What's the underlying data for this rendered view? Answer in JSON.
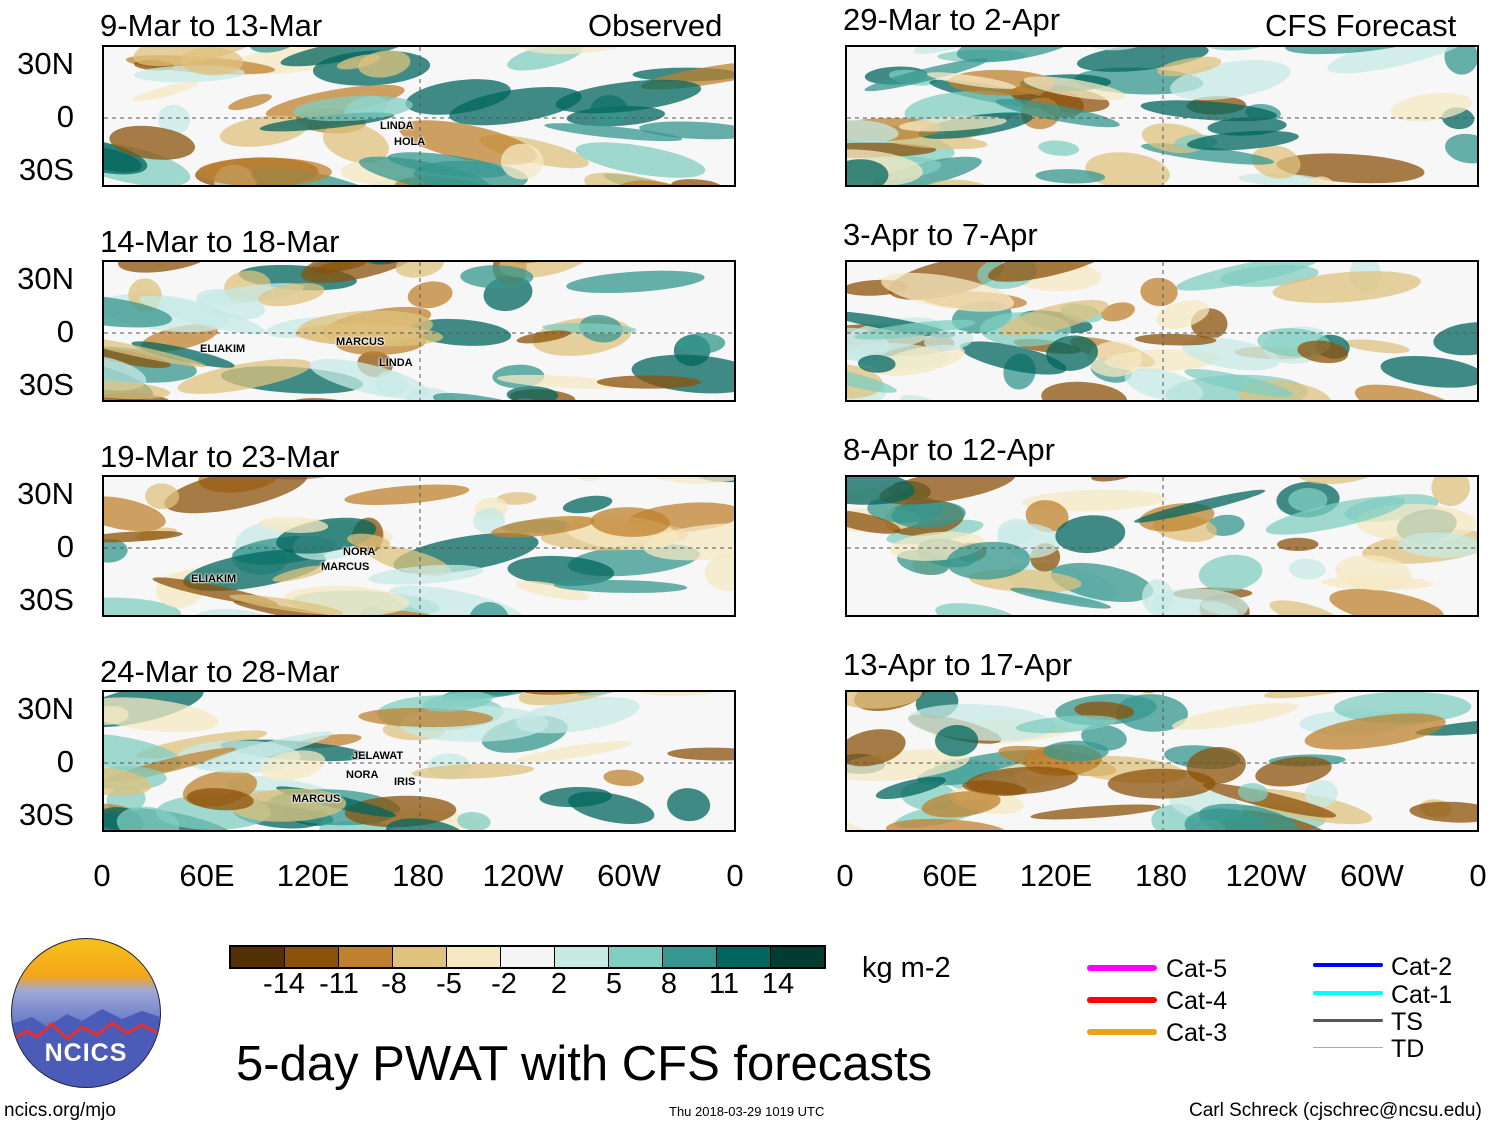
{
  "panels_left": [
    {
      "title": "9-Mar to 13-Mar",
      "tag": "Observed",
      "storms": [
        "LINDA",
        "HOLA"
      ]
    },
    {
      "title": "14-Mar to 18-Mar",
      "tag": "",
      "storms": [
        "ELIAKIM",
        "MARCUS",
        "LINDA"
      ]
    },
    {
      "title": "19-Mar to 23-Mar",
      "tag": "",
      "storms": [
        "NORA",
        "MARCUS",
        "ELIAKIM"
      ]
    },
    {
      "title": "24-Mar to 28-Mar",
      "tag": "",
      "storms": [
        "JELAWAT",
        "NORA",
        "IRIS",
        "MARCUS"
      ]
    }
  ],
  "panels_right": [
    {
      "title": "29-Mar to 2-Apr",
      "tag": "CFS Forecast"
    },
    {
      "title": "3-Apr to 7-Apr",
      "tag": ""
    },
    {
      "title": "8-Apr to 12-Apr",
      "tag": ""
    },
    {
      "title": "13-Apr to 17-Apr",
      "tag": ""
    }
  ],
  "y_ticks": [
    "30N",
    "0",
    "30S"
  ],
  "x_ticks": [
    "0",
    "60E",
    "120E",
    "180",
    "120W",
    "60W",
    "0"
  ],
  "colorbar": {
    "labels": [
      "-14",
      "-11",
      "-8",
      "-5",
      "-2",
      "2",
      "5",
      "8",
      "11",
      "14"
    ],
    "colors": [
      "#543005",
      "#8c510a",
      "#bf812d",
      "#dfc27d",
      "#f6e8c3",
      "#f5f5f5",
      "#c7eae5",
      "#80cdc1",
      "#35978f",
      "#01665e",
      "#003c30"
    ],
    "units": "kg m-2"
  },
  "legend": [
    {
      "label": "Cat-5",
      "color": "#ff00ff"
    },
    {
      "label": "Cat-4",
      "color": "#ff0000"
    },
    {
      "label": "Cat-3",
      "color": "#e8a317"
    },
    {
      "label": "Cat-2",
      "color": "#0000ff"
    },
    {
      "label": "Cat-1",
      "color": "#00ffff"
    },
    {
      "label": "TS",
      "color": "#555555"
    },
    {
      "label": "TD",
      "color": "#aaaaaa"
    }
  ],
  "logo_text": "NCICS",
  "main_title": "5-day PWAT with CFS forecasts",
  "footer": {
    "left": "ncics.org/mjo",
    "center": "Thu 2018-03-29 1019 UTC",
    "right": "Carl Schreck (cjschrec@ncsu.edu)"
  }
}
